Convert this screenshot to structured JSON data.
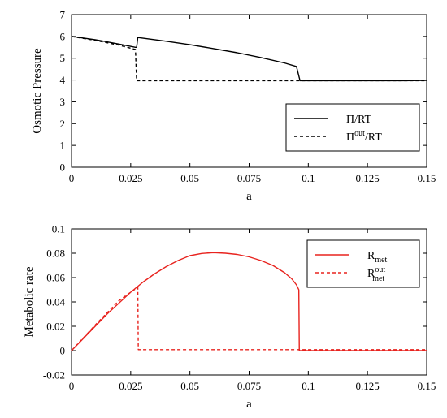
{
  "chart_data": [
    {
      "type": "line",
      "xlabel": "a",
      "ylabel": "Osmotic Pressure",
      "xlim": [
        0,
        0.15
      ],
      "ylim": [
        0,
        7
      ],
      "x_ticks": [
        "0",
        "0.025",
        "0.05",
        "0.075",
        "0.1",
        "0.125",
        "0.15"
      ],
      "y_ticks": [
        "0",
        "1",
        "2",
        "3",
        "4",
        "5",
        "6",
        "7"
      ],
      "grid": false,
      "legend_position": "bottom-right",
      "color": "#000000",
      "legend": [
        {
          "base": "Π/RT",
          "sup": "",
          "sub": "",
          "tail": "",
          "style": "solid"
        },
        {
          "base": "Π",
          "sup": "out",
          "sub": "",
          "tail": "/RT",
          "style": "dashed"
        }
      ],
      "series": [
        {
          "name": "Π/RT",
          "style": "solid",
          "x": [
            0,
            0.01,
            0.02,
            0.027,
            0.0275,
            0.028,
            0.04,
            0.05,
            0.06,
            0.07,
            0.08,
            0.09,
            0.095,
            0.0965,
            0.1,
            0.11,
            0.12,
            0.13,
            0.14,
            0.15
          ],
          "y": [
            6.0,
            5.85,
            5.65,
            5.5,
            5.5,
            5.95,
            5.78,
            5.62,
            5.44,
            5.25,
            5.03,
            4.78,
            4.62,
            3.97,
            3.97,
            3.97,
            3.97,
            3.97,
            3.97,
            3.98
          ]
        },
        {
          "name": "Πout/RT",
          "style": "dashed",
          "x": [
            0,
            0.01,
            0.02,
            0.027,
            0.0275,
            0.04,
            0.06,
            0.08,
            0.1,
            0.12,
            0.14,
            0.15
          ],
          "y": [
            6.0,
            5.82,
            5.6,
            5.4,
            3.97,
            3.97,
            3.97,
            3.97,
            3.97,
            3.97,
            3.97,
            3.97
          ]
        }
      ]
    },
    {
      "type": "line",
      "xlabel": "a",
      "ylabel": "Metabolic rate",
      "xlim": [
        0,
        0.15
      ],
      "ylim": [
        -0.02,
        0.1
      ],
      "x_ticks": [
        "0",
        "0.025",
        "0.05",
        "0.075",
        "0.1",
        "0.125",
        "0.15"
      ],
      "y_ticks": [
        "-0.02",
        "0",
        "0.02",
        "0.04",
        "0.06",
        "0.08",
        "0.1"
      ],
      "grid": false,
      "legend_position": "top-right",
      "color": "#e8231e",
      "legend": [
        {
          "base": "R",
          "sup": "",
          "sub": "met",
          "tail": "",
          "style": "solid"
        },
        {
          "base": "R",
          "sup": "out",
          "sub": "met",
          "tail": "",
          "style": "dashed"
        }
      ],
      "series": [
        {
          "name": "Rmet",
          "style": "solid",
          "x": [
            0,
            0.005,
            0.01,
            0.015,
            0.02,
            0.025,
            0.03,
            0.035,
            0.04,
            0.045,
            0.05,
            0.055,
            0.06,
            0.065,
            0.07,
            0.075,
            0.08,
            0.085,
            0.09,
            0.093,
            0.095,
            0.096,
            0.0962,
            0.1,
            0.11,
            0.12,
            0.13,
            0.14,
            0.15
          ],
          "y": [
            0,
            0.01,
            0.02,
            0.03,
            0.039,
            0.048,
            0.056,
            0.063,
            0.069,
            0.074,
            0.078,
            0.0798,
            0.0805,
            0.08,
            0.079,
            0.077,
            0.074,
            0.07,
            0.064,
            0.059,
            0.054,
            0.05,
            0.0,
            0.0,
            0.0,
            0.0,
            0.0,
            0.0,
            0.0
          ]
        },
        {
          "name": "Rmet out",
          "style": "dashed",
          "x": [
            0,
            0.005,
            0.01,
            0.015,
            0.02,
            0.025,
            0.028,
            0.0282,
            0.04,
            0.06,
            0.08,
            0.1,
            0.12,
            0.14,
            0.15
          ],
          "y": [
            0,
            0.0105,
            0.021,
            0.031,
            0.041,
            0.048,
            0.052,
            0.0008,
            0.0008,
            0.0008,
            0.0008,
            0.0008,
            0.0008,
            0.0008,
            0.0008
          ]
        }
      ]
    }
  ]
}
